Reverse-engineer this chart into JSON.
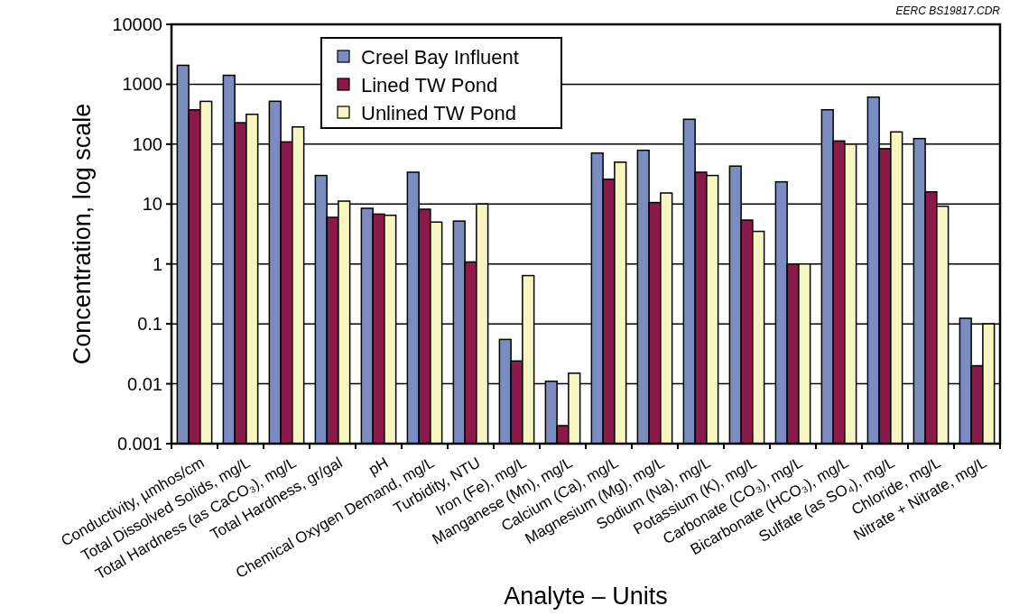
{
  "chart_data": {
    "type": "bar",
    "xlabel": "Analyte – Units",
    "ylabel": "Concentration, log scale",
    "annotations": [
      "EERC BS19817.CDR"
    ],
    "categories": [
      "Conductivity, µmhos/cm",
      "Total Dissolved Solids, mg/L",
      "Total Hardness (as CaCO₃), mg/L",
      "Total Hardness, gr/gal",
      "pH",
      "Chemical Oxygen Demand, mg/L",
      "Turbidity, NTU",
      "Iron (Fe), mg/L",
      "Manganese (Mn), mg/L",
      "Calcium (Ca), mg/L",
      "Magnesium (Mg), mg/L",
      "Sodium (Na), mg/L",
      "Potassium (K), mg/L",
      "Carbonate (CO₃), mg/L",
      "Bicarbonate (HCO₃), mg/L",
      "Sulfate (as SO₄), mg/L",
      "Chloride, mg/L",
      "Nitrate + Nitrate, mg/L"
    ],
    "series": [
      {
        "name": "Creel Bay Influent",
        "color": "#7b8dc0",
        "values": [
          2070,
          1410,
          520,
          30,
          8.5,
          34,
          5.2,
          0.055,
          0.011,
          71,
          79,
          260,
          43,
          23.5,
          375,
          610,
          124,
          0.124
        ]
      },
      {
        "name": "Lined TW Pond",
        "color": "#8b1a4a",
        "values": [
          374,
          228,
          109,
          6,
          6.8,
          8.2,
          1.08,
          0.024,
          0.002,
          26,
          10.6,
          34,
          5.4,
          1,
          113,
          84,
          16,
          0.02
        ]
      },
      {
        "name": "Unlined TW Pond",
        "color": "#f8f6c0",
        "values": [
          518,
          315,
          194,
          11.2,
          6.5,
          5,
          10,
          0.64,
          0.015,
          50,
          15.3,
          30,
          3.5,
          1,
          100,
          160,
          9.2,
          0.1
        ]
      }
    ],
    "log": "y",
    "ylim": [
      0.001,
      10000
    ],
    "yticks": [
      0.001,
      0.01,
      0.1,
      1,
      10,
      100,
      1000,
      10000
    ],
    "grid": "y",
    "legend": "top left"
  }
}
